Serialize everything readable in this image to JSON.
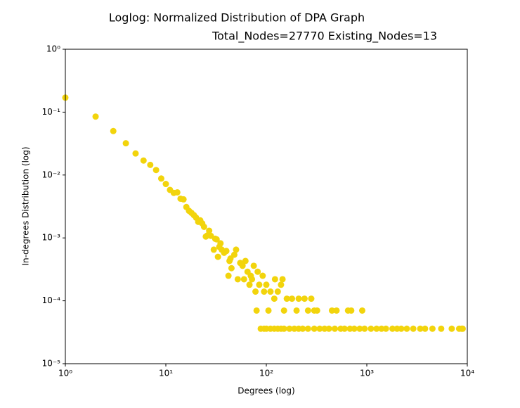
{
  "chart_data": {
    "type": "scatter",
    "title": "Loglog: Normalized Distribution of DPA Graph",
    "subtitle": "Total_Nodes=27770 Existing_Nodes=13",
    "xlabel": "Degrees (log)",
    "ylabel": "In-degrees Distribution (log)",
    "xscale": "log",
    "yscale": "log",
    "grid": false,
    "xlim": [
      1,
      10000
    ],
    "ylim": [
      1e-05,
      1
    ],
    "xticks": [
      {
        "value": 1,
        "label": "10⁰"
      },
      {
        "value": 10,
        "label": "10¹"
      },
      {
        "value": 100,
        "label": "10²"
      },
      {
        "value": 1000,
        "label": "10³"
      },
      {
        "value": 10000,
        "label": "10⁴"
      }
    ],
    "yticks": [
      {
        "value": 1e-05,
        "label": "10⁻⁵"
      },
      {
        "value": 0.0001,
        "label": "10⁻⁴"
      },
      {
        "value": 0.001,
        "label": "10⁻³"
      },
      {
        "value": 0.01,
        "label": "10⁻²"
      },
      {
        "value": 0.1,
        "label": "10⁻¹"
      },
      {
        "value": 1,
        "label": "10⁰"
      }
    ],
    "color": "#f2d40c",
    "x": [
      1,
      2,
      3,
      4,
      5,
      6,
      7,
      8,
      9,
      10,
      11,
      12,
      13,
      14,
      15,
      16,
      17,
      18,
      19,
      20,
      21,
      22,
      23,
      24,
      25,
      26,
      27,
      28,
      30,
      31,
      32,
      33,
      34,
      35,
      36,
      38,
      40,
      42,
      43,
      44,
      45,
      48,
      50,
      52,
      55,
      58,
      60,
      62,
      65,
      68,
      70,
      72,
      75,
      78,
      80,
      82,
      85,
      92,
      95,
      100,
      105,
      110,
      120,
      122,
      130,
      140,
      145,
      150,
      160,
      180,
      200,
      210,
      240,
      260,
      280,
      300,
      320,
      450,
      500,
      650,
      700,
      900,
      88,
      95,
      100,
      110,
      120,
      130,
      140,
      150,
      170,
      190,
      210,
      230,
      260,
      300,
      340,
      380,
      420,
      480,
      550,
      600,
      680,
      750,
      850,
      950,
      1100,
      1250,
      1400,
      1550,
      1800,
      2000,
      2200,
      2500,
      2900,
      3400,
      3800,
      4500,
      5500,
      7000,
      8300,
      8800,
      9000
    ],
    "values": [
      0.17,
      0.085,
      0.05,
      0.032,
      0.022,
      0.017,
      0.0145,
      0.012,
      0.0088,
      0.0072,
      0.0058,
      0.0052,
      0.0053,
      0.0042,
      0.0041,
      0.0031,
      0.0027,
      0.0025,
      0.0023,
      0.0021,
      0.0018,
      0.0019,
      0.0017,
      0.0015,
      0.00105,
      0.0011,
      0.0013,
      0.00108,
      0.00065,
      0.00097,
      0.00095,
      0.0005,
      0.00072,
      0.00082,
      0.00065,
      0.00058,
      0.00062,
      0.00025,
      0.00043,
      0.00047,
      0.00033,
      0.00054,
      0.00065,
      0.00022,
      0.0004,
      0.00036,
      0.00022,
      0.00043,
      0.00029,
      0.00018,
      0.00025,
      0.00022,
      0.00036,
      0.00014,
      7e-05,
      0.00029,
      0.00018,
      0.00025,
      0.00014,
      0.00018,
      7e-05,
      0.00014,
      0.000108,
      0.00022,
      0.00014,
      0.00018,
      0.00022,
      7e-05,
      0.000108,
      0.000108,
      7e-05,
      0.000108,
      0.000108,
      7e-05,
      0.000108,
      7e-05,
      7e-05,
      7e-05,
      7e-05,
      7e-05,
      7e-05,
      7e-05,
      3.6e-05,
      3.6e-05,
      3.6e-05,
      3.6e-05,
      3.6e-05,
      3.6e-05,
      3.6e-05,
      3.6e-05,
      3.6e-05,
      3.6e-05,
      3.6e-05,
      3.6e-05,
      3.6e-05,
      3.6e-05,
      3.6e-05,
      3.6e-05,
      3.6e-05,
      3.6e-05,
      3.6e-05,
      3.6e-05,
      3.6e-05,
      3.6e-05,
      3.6e-05,
      3.6e-05,
      3.6e-05,
      3.6e-05,
      3.6e-05,
      3.6e-05,
      3.6e-05,
      3.6e-05,
      3.6e-05,
      3.6e-05,
      3.6e-05,
      3.6e-05,
      3.6e-05,
      3.6e-05,
      3.6e-05,
      3.6e-05,
      3.6e-05,
      3.6e-05,
      3.6e-05
    ]
  }
}
